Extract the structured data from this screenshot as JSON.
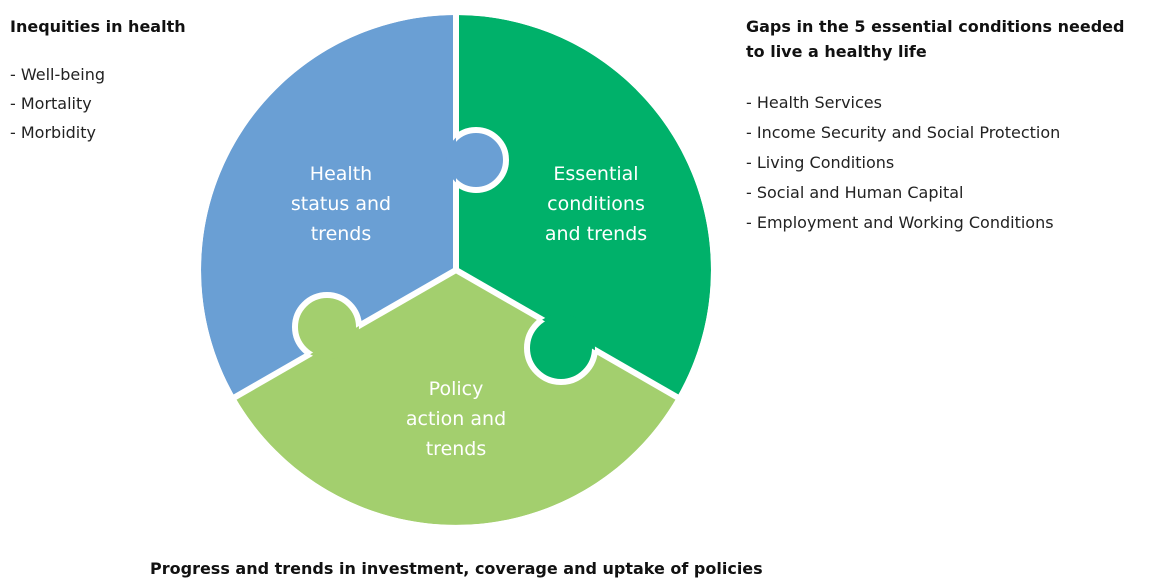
{
  "left_panel": {
    "title": "Inequities in health",
    "items": [
      "- Well-being",
      "- Mortality",
      "- Morbidity"
    ]
  },
  "right_panel": {
    "title": [
      "Gaps in the 5 essential conditions needed",
      "to live a healthy life"
    ],
    "items": [
      "- Health Services",
      "- Income Security and Social Protection",
      "- Living Conditions",
      "- Social and Human Capital",
      "- Employment and Working Conditions"
    ]
  },
  "segments": [
    {
      "label": [
        "Health",
        "status and",
        "trends"
      ]
    },
    {
      "label": [
        "Essential",
        "conditions",
        "and trends"
      ]
    },
    {
      "label": [
        "Policy",
        "action and",
        "trends"
      ]
    }
  ],
  "caption": "Progress and trends in investment, coverage and uptake of policies"
}
